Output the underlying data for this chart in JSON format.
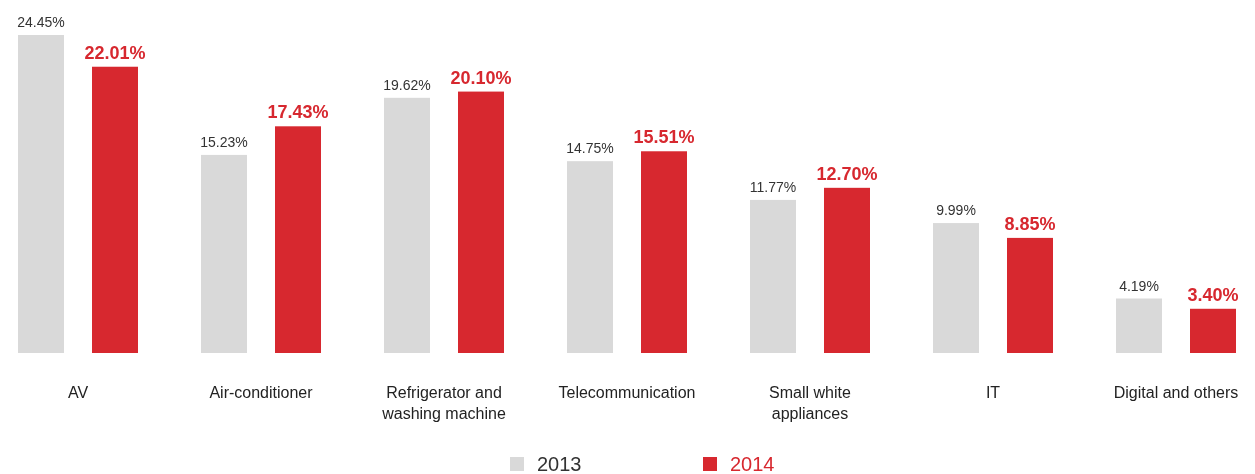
{
  "chart_data": {
    "type": "bar",
    "categories": [
      "AV",
      "Air-conditioner",
      "Refrigerator and\nwashing machine",
      "Telecommunication",
      "Small white\nappliances",
      "IT",
      "Digital and others"
    ],
    "series": [
      {
        "name": "2013",
        "color": "#d9d9d9",
        "values": [
          24.45,
          15.23,
          19.62,
          14.75,
          11.77,
          9.99,
          4.19
        ],
        "value_labels": [
          "24.45%",
          "15.23%",
          "19.62%",
          "14.75%",
          "11.77%",
          "9.99%",
          "4.19%"
        ]
      },
      {
        "name": "2014",
        "color": "#d7282f",
        "values": [
          22.01,
          17.43,
          20.1,
          15.51,
          12.7,
          8.85,
          3.4
        ],
        "value_labels": [
          "22.01%",
          "17.43%",
          "20.10%",
          "15.51%",
          "12.70%",
          "8.85%",
          "3.40%"
        ]
      }
    ],
    "legend": "bottom"
  }
}
